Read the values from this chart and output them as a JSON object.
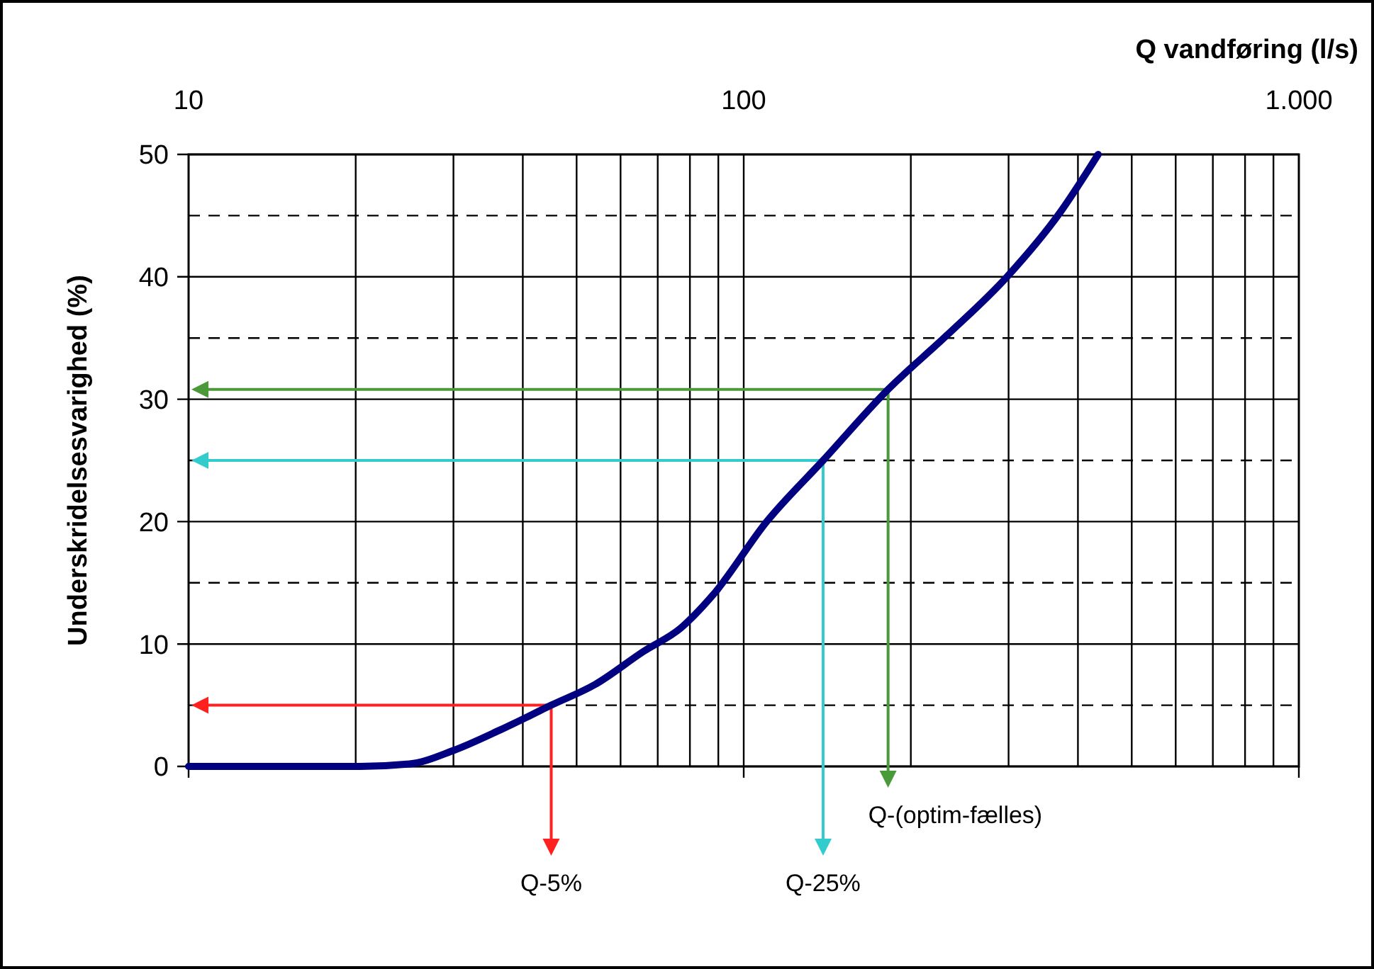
{
  "chart_data": {
    "type": "line",
    "xlabel": "Q vandføring (l/s)",
    "ylabel": "Underskridelsesvarighed (%)",
    "log": "x",
    "xlim": [
      10,
      1000
    ],
    "xticks": [
      10,
      100,
      {
        "value": 1000,
        "label": "1.000"
      }
    ],
    "ylim": [
      0,
      50
    ],
    "yticks": [
      0,
      10,
      20,
      30,
      40,
      50
    ],
    "grid": true,
    "series": [
      {
        "color": "#000080",
        "x": [
          10,
          20.3,
          25,
          30,
          36.5,
          45,
          54,
          66,
          77,
          88,
          110,
          139,
          182,
          232,
          298,
          372,
          435
        ],
        "values": [
          0,
          0,
          0.2,
          1.3,
          3,
          5,
          6.7,
          9.4,
          11.3,
          14,
          20,
          25,
          30.8,
          35.2,
          40,
          45.3,
          50
        ]
      }
    ],
    "annotations": [
      {
        "text": "Q-5%",
        "x": 45,
        "y": 5
      },
      {
        "text": "Q-25%",
        "x": 139,
        "y": 25
      },
      {
        "text": "Q-(optim-fælles)",
        "x": 182,
        "y": 30.8
      }
    ]
  }
}
